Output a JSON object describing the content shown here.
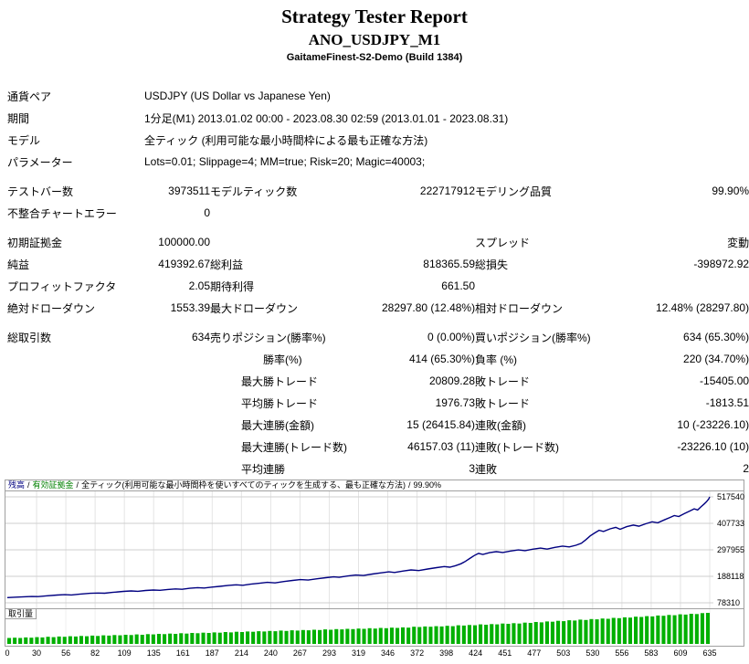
{
  "title": {
    "main": "Strategy Tester Report",
    "symbol": "ANO_USDJPY_M1",
    "server": "GaitameFinest-S2-Demo (Build 1384)"
  },
  "info": {
    "pair_label": "通貨ペア",
    "pair_value": "USDJPY (US Dollar vs Japanese Yen)",
    "period_label": "期間",
    "period_value": "1分足(M1) 2013.01.02 00:00 - 2023.08.30 02:59 (2013.01.01 - 2023.08.31)",
    "model_label": "モデル",
    "model_value": "全ティック (利用可能な最小時間枠による最も正確な方法)",
    "params_label": "パラメーター",
    "params_value": "Lots=0.01; Slippage=4; MM=true; Risk=20; Magic=40003;"
  },
  "stats": {
    "bars_label": "テストバー数",
    "bars_value": "3973511",
    "ticks_label": "モデルティック数",
    "ticks_value": "222717912",
    "quality_label": "モデリング品質",
    "quality_value": "99.90%",
    "mismatch_label": "不整合チャートエラー",
    "mismatch_value": "0",
    "deposit_label": "初期証拠金",
    "deposit_value": "100000.00",
    "spread_label": "スプレッド",
    "spread_value": "変動",
    "netprofit_label": "純益",
    "netprofit_value": "419392.67",
    "grossprofit_label": "総利益",
    "grossprofit_value": "818365.59",
    "grossloss_label": "総損失",
    "grossloss_value": "-398972.92",
    "pf_label": "プロフィットファクタ",
    "pf_value": "2.05",
    "payoff_label": "期待利得",
    "payoff_value": "661.50",
    "absdd_label": "絶対ドローダウン",
    "absdd_value": "1553.39",
    "maxdd_label": "最大ドローダウン",
    "maxdd_value": "28297.80 (12.48%)",
    "reldd_label": "相対ドローダウン",
    "reldd_value": "12.48% (28297.80)",
    "trades_label": "総取引数",
    "trades_value": "634",
    "short_label": "売りポジション(勝率%)",
    "short_value": "0 (0.00%)",
    "long_label": "買いポジション(勝率%)",
    "long_value": "634 (65.30%)",
    "profittrades_label": "勝率(%)",
    "profittrades_value": "414 (65.30%)",
    "losstrades_label": "負率 (%)",
    "losstrades_value": "220 (34.70%)",
    "largest_label": "最大",
    "avg_label": "平均",
    "profittrade_label": "勝トレード",
    "losstrade_label": "敗トレード",
    "largest_profit": "20809.28",
    "largest_loss": "-15405.00",
    "avg_profit": "1976.73",
    "avg_loss": "-1813.51",
    "consec_wins_money_label": "連勝(金額)",
    "consec_wins_money": "15 (26415.84)",
    "consec_losses_money_label": "連敗(金額)",
    "consec_losses_money": "10 (-23226.10)",
    "consec_wins_count_label": "連勝(トレード数)",
    "consec_wins_count": "46157.03 (11)",
    "consec_losses_count_label": "連敗(トレード数)",
    "consec_losses_count": "-23226.10 (10)",
    "avg_consec_wins_label": "連勝",
    "avg_consec_wins": "3",
    "avg_consec_losses_label": "連敗",
    "avg_consec_losses": "2"
  },
  "chart_data": {
    "type": "line",
    "legend": {
      "balance_label": "残高",
      "equity_label": "有効証拠金",
      "separator": "/",
      "model_note": "全ティック(利用可能な最小時間枠を使いすべてのティックを生成する、最も正確な方法)",
      "quality": "99.90%"
    },
    "volume_label": "取引量",
    "balance_color": "#000080",
    "equity_color": "#008000",
    "volume_color": "#00b000",
    "xlim": [
      0,
      635
    ],
    "ylim": [
      78310,
      517540
    ],
    "x_ticks": [
      0,
      30,
      56,
      82,
      109,
      135,
      161,
      187,
      214,
      240,
      267,
      293,
      319,
      346,
      372,
      398,
      424,
      451,
      477,
      503,
      530,
      556,
      583,
      609,
      635
    ],
    "y_ticks": [
      517540,
      407733,
      297955,
      188118,
      78310
    ],
    "balance_points": [
      [
        0,
        100000
      ],
      [
        8,
        101800
      ],
      [
        15,
        103200
      ],
      [
        22,
        104500
      ],
      [
        28,
        104000
      ],
      [
        35,
        107000
      ],
      [
        45,
        110500
      ],
      [
        52,
        112000
      ],
      [
        58,
        111000
      ],
      [
        65,
        114000
      ],
      [
        75,
        117500
      ],
      [
        82,
        119000
      ],
      [
        88,
        118000
      ],
      [
        95,
        121500
      ],
      [
        105,
        125500
      ],
      [
        112,
        127500
      ],
      [
        118,
        126000
      ],
      [
        125,
        129500
      ],
      [
        132,
        131500
      ],
      [
        138,
        130000
      ],
      [
        145,
        133500
      ],
      [
        152,
        136000
      ],
      [
        158,
        134500
      ],
      [
        165,
        138500
      ],
      [
        172,
        141000
      ],
      [
        178,
        139500
      ],
      [
        185,
        143500
      ],
      [
        192,
        146500
      ],
      [
        200,
        150500
      ],
      [
        207,
        153000
      ],
      [
        213,
        151000
      ],
      [
        220,
        155500
      ],
      [
        228,
        159500
      ],
      [
        235,
        163000
      ],
      [
        242,
        161000
      ],
      [
        250,
        166500
      ],
      [
        258,
        171000
      ],
      [
        265,
        174500
      ],
      [
        272,
        172500
      ],
      [
        280,
        178000
      ],
      [
        288,
        182500
      ],
      [
        295,
        186000
      ],
      [
        300,
        184000
      ],
      [
        308,
        189500
      ],
      [
        315,
        193500
      ],
      [
        322,
        191500
      ],
      [
        330,
        197500
      ],
      [
        338,
        202500
      ],
      [
        345,
        206500
      ],
      [
        350,
        204000
      ],
      [
        358,
        210000
      ],
      [
        365,
        214500
      ],
      [
        372,
        212000
      ],
      [
        380,
        218500
      ],
      [
        388,
        224000
      ],
      [
        395,
        228500
      ],
      [
        400,
        226000
      ],
      [
        405,
        232000
      ],
      [
        410,
        240000
      ],
      [
        414,
        250000
      ],
      [
        418,
        262000
      ],
      [
        422,
        274000
      ],
      [
        426,
        283000
      ],
      [
        430,
        279000
      ],
      [
        436,
        286000
      ],
      [
        442,
        290500
      ],
      [
        448,
        287000
      ],
      [
        455,
        293000
      ],
      [
        462,
        297500
      ],
      [
        468,
        294500
      ],
      [
        475,
        300500
      ],
      [
        482,
        305000
      ],
      [
        488,
        301000
      ],
      [
        495,
        308000
      ],
      [
        502,
        313500
      ],
      [
        508,
        310000
      ],
      [
        514,
        317000
      ],
      [
        519,
        325000
      ],
      [
        523,
        340000
      ],
      [
        527,
        356000
      ],
      [
        531,
        368000
      ],
      [
        535,
        379000
      ],
      [
        539,
        374000
      ],
      [
        545,
        385000
      ],
      [
        550,
        391000
      ],
      [
        554,
        383000
      ],
      [
        560,
        394000
      ],
      [
        566,
        400500
      ],
      [
        571,
        396000
      ],
      [
        577,
        406000
      ],
      [
        583,
        414000
      ],
      [
        588,
        410000
      ],
      [
        594,
        422000
      ],
      [
        599,
        432000
      ],
      [
        603,
        440000
      ],
      [
        607,
        436000
      ],
      [
        612,
        448000
      ],
      [
        617,
        459000
      ],
      [
        621,
        468000
      ],
      [
        624,
        463000
      ],
      [
        627,
        476000
      ],
      [
        630,
        488000
      ],
      [
        632,
        497000
      ],
      [
        634,
        508000
      ],
      [
        635,
        517500
      ]
    ],
    "volume": [
      2.0,
      2.1,
      2.0,
      2.2,
      2.1,
      2.3,
      2.2,
      2.4,
      2.3,
      2.5,
      2.4,
      2.6,
      2.5,
      2.7,
      2.6,
      2.8,
      2.7,
      2.9,
      2.8,
      3.0,
      2.9,
      3.1,
      3.0,
      3.2,
      3.1,
      3.3,
      3.2,
      3.4,
      3.3,
      3.5,
      3.4,
      3.6,
      3.5,
      3.7,
      3.6,
      3.8,
      3.7,
      3.9,
      3.8,
      4.0,
      3.9,
      4.1,
      4.0,
      4.2,
      4.1,
      4.3,
      4.2,
      4.4,
      4.3,
      4.5,
      4.4,
      4.6,
      4.5,
      4.7,
      4.6,
      4.8,
      4.7,
      4.9,
      4.8,
      5.0,
      4.9,
      5.1,
      5.0,
      5.2,
      5.1,
      5.3,
      5.2,
      5.4,
      5.3,
      5.5,
      5.4,
      5.6,
      5.5,
      5.8,
      5.7,
      5.9,
      5.8,
      6.0,
      5.9,
      6.1,
      6.0,
      6.3,
      6.2,
      6.4,
      6.3,
      6.6,
      6.5,
      6.7,
      6.6,
      6.9,
      6.8,
      7.0,
      6.9,
      7.2,
      7.1,
      7.4,
      7.3,
      7.6,
      7.5,
      7.8,
      7.7,
      8.0,
      7.9,
      8.2,
      8.1,
      8.4,
      8.3,
      8.6,
      8.5,
      8.8,
      8.7,
      9.0,
      8.9,
      9.2,
      9.1,
      9.4,
      9.3,
      9.6,
      9.5,
      9.8,
      9.7,
      10.0,
      9.9,
      10.2,
      10.1,
      10.4,
      10.5
    ]
  }
}
